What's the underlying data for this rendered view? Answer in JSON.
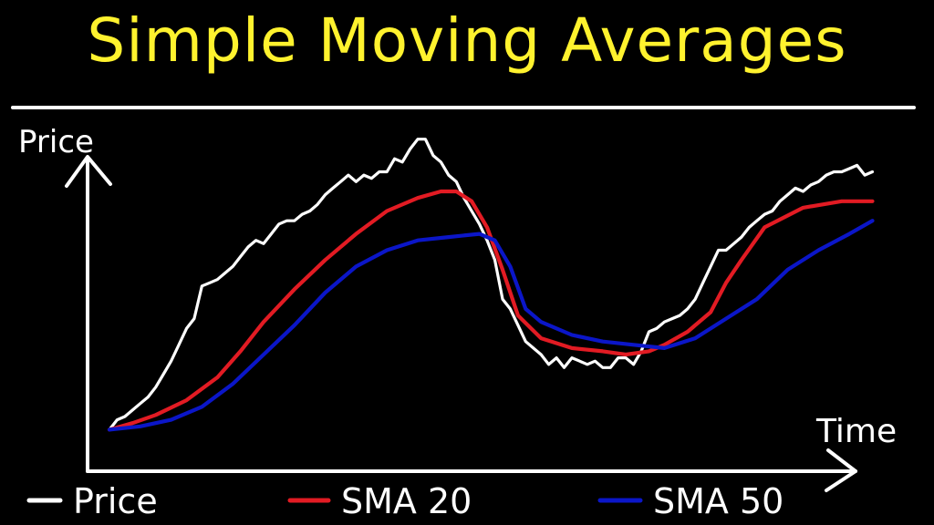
{
  "chart_data": {
    "type": "line",
    "title": "Simple Moving Averages",
    "xlabel": "Time",
    "ylabel": "Price",
    "xlim": [
      0,
      100
    ],
    "ylim": [
      0,
      100
    ],
    "grid": false,
    "legend_position": "bottom",
    "series": [
      {
        "name": "Price",
        "color": "#ffffff",
        "x": [
          0,
          1,
          2,
          3,
          4,
          5,
          6,
          7,
          8,
          9,
          10,
          11,
          12,
          13,
          14,
          15,
          16,
          17,
          18,
          19,
          20,
          21,
          22,
          23,
          24,
          25,
          26,
          27,
          28,
          29,
          30,
          31,
          32,
          33,
          34,
          35,
          36,
          37,
          38,
          39,
          40,
          41,
          42,
          43,
          44,
          45,
          46,
          47,
          48,
          49,
          50,
          51,
          52,
          53,
          54,
          55,
          56,
          57,
          58,
          59,
          60,
          61,
          62,
          63,
          64,
          65,
          66,
          67,
          68,
          69,
          70,
          71,
          72,
          73,
          74,
          75,
          76,
          77,
          78,
          79,
          80,
          81,
          82,
          83,
          84,
          85,
          86,
          87,
          88,
          89,
          90,
          91,
          92,
          93,
          94,
          95,
          96,
          97,
          98,
          99
        ],
        "values": [
          8,
          11,
          12,
          14,
          16,
          18,
          21,
          25,
          29,
          34,
          39,
          42,
          52,
          53,
          54,
          56,
          58,
          61,
          64,
          66,
          65,
          68,
          71,
          72,
          72,
          74,
          75,
          77,
          80,
          82,
          84,
          86,
          84,
          86,
          85,
          87,
          87,
          91,
          90,
          94,
          97,
          97,
          92,
          90,
          86,
          84,
          79,
          75,
          71,
          66,
          60,
          48,
          45,
          40,
          35,
          33,
          31,
          28,
          30,
          27,
          30,
          29,
          28,
          29,
          27,
          27,
          30,
          30,
          28,
          32,
          38,
          39,
          41,
          42,
          43,
          45,
          48,
          53,
          58,
          63,
          63,
          65,
          67,
          70,
          72,
          74,
          75,
          78,
          80,
          82,
          81,
          83,
          84,
          86,
          87,
          87,
          88,
          89,
          86,
          87
        ]
      },
      {
        "name": "SMA 20",
        "color": "#e21b23",
        "x": [
          0,
          3,
          6,
          10,
          14,
          17,
          20,
          24,
          28,
          32,
          36,
          40,
          43,
          45,
          47,
          49,
          51,
          53,
          56,
          60,
          64,
          67,
          70,
          72,
          75,
          78,
          80,
          82,
          85,
          90,
          95,
          99
        ],
        "values": [
          8,
          10,
          12.5,
          17,
          24,
          32,
          41,
          51,
          60,
          68,
          75,
          79,
          81,
          81,
          78,
          70,
          57,
          43,
          36,
          33,
          32,
          31,
          32,
          34,
          38,
          44,
          53,
          60,
          70,
          76,
          78,
          78
        ]
      },
      {
        "name": "SMA 50",
        "color": "#0b16c8",
        "x": [
          0,
          4,
          8,
          12,
          16,
          20,
          24,
          28,
          32,
          36,
          40,
          44,
          48,
          50,
          52,
          54,
          56,
          60,
          64,
          68,
          72,
          76,
          80,
          84,
          88,
          92,
          96,
          99
        ],
        "values": [
          8,
          9,
          11,
          15,
          22,
          31,
          40,
          50,
          58,
          63,
          66,
          67,
          68,
          66,
          58,
          45,
          41,
          37,
          35,
          34,
          33,
          36,
          42,
          48,
          57,
          63,
          68,
          72
        ]
      }
    ]
  },
  "legend": [
    {
      "label": "Price",
      "color": "#ffffff"
    },
    {
      "label": "SMA 20",
      "color": "#e21b23"
    },
    {
      "label": "SMA 50",
      "color": "#0b16c8"
    }
  ]
}
